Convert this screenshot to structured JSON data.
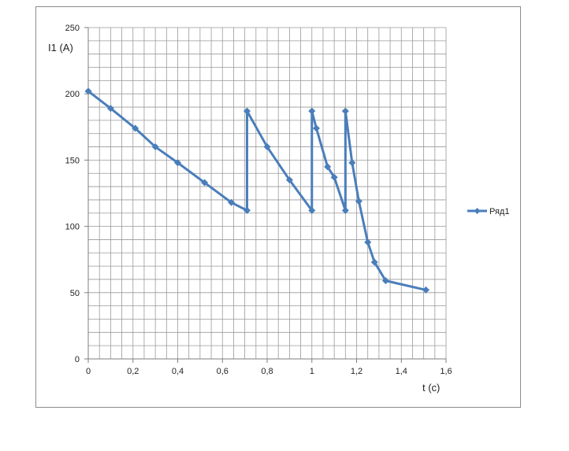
{
  "chart_data": {
    "type": "line",
    "title": "",
    "xlabel": "t (c)",
    "ylabel": "I1 (A)",
    "xlim": [
      0,
      1.6
    ],
    "ylim": [
      0,
      250
    ],
    "x_ticks": [
      0,
      0.2,
      0.4,
      0.6,
      0.8,
      1,
      1.2,
      1.4,
      1.6
    ],
    "x_tick_labels": [
      "0",
      "0,2",
      "0,4",
      "0,6",
      "0,8",
      "1",
      "1,2",
      "1,4",
      "1,6"
    ],
    "y_ticks": [
      0,
      50,
      100,
      150,
      200,
      250
    ],
    "y_tick_labels": [
      "0",
      "50",
      "100",
      "150",
      "200",
      "250"
    ],
    "grid": true,
    "legend_position": "right",
    "series": [
      {
        "name": "Ряд1",
        "color": "#4a7ebb",
        "marker": "diamond",
        "x": [
          0,
          0.1,
          0.21,
          0.3,
          0.4,
          0.52,
          0.64,
          0.71,
          0.71,
          0.8,
          0.9,
          1.0,
          1.0,
          1.02,
          1.07,
          1.1,
          1.15,
          1.15,
          1.18,
          1.21,
          1.25,
          1.28,
          1.33,
          1.51
        ],
        "y": [
          202,
          189,
          174,
          160,
          148,
          133,
          118,
          112,
          187,
          160,
          135,
          112,
          187,
          174,
          145,
          137,
          112,
          187,
          148,
          119,
          88,
          73,
          59,
          52
        ]
      }
    ]
  }
}
